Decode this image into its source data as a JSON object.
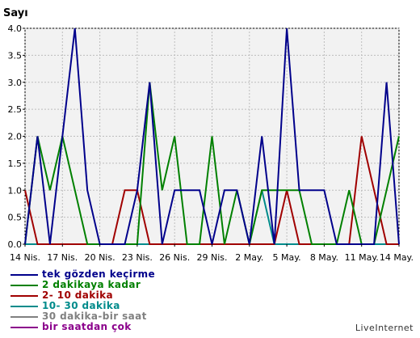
{
  "chart_data": {
    "type": "line",
    "ylabel": "Sayı",
    "ylim": [
      0,
      4
    ],
    "yticks": [
      "0.0",
      "0.5",
      "1.0",
      "1.5",
      "2.0",
      "2.5",
      "3.0",
      "3.5",
      "4.0"
    ],
    "x": [
      "14 Nis.",
      "15 Nis.",
      "16 Nis.",
      "17 Nis.",
      "18 Nis.",
      "19 Nis.",
      "20 Nis.",
      "21 Nis.",
      "22 Nis.",
      "23 Nis.",
      "24 Nis.",
      "25 Nis.",
      "26 Nis.",
      "27 Nis.",
      "28 Nis.",
      "29 Nis.",
      "30 Nis.",
      "1 May.",
      "2 May.",
      "3 May.",
      "4 May.",
      "5 May.",
      "6 May.",
      "7 May.",
      "8 May.",
      "9 May.",
      "10 May.",
      "11 May.",
      "12 May.",
      "13 May.",
      "14 May."
    ],
    "xtick_labels": [
      "14 Nis.",
      "17 Nis.",
      "20 Nis.",
      "23 Nis.",
      "26 Nis.",
      "29 Nis.",
      "2 May.",
      "5 May.",
      "8 May.",
      "11 May.",
      "14 May."
    ],
    "grid": true,
    "series": [
      {
        "name": "tek gözden keçirme",
        "color": "#00008b",
        "values": [
          0,
          2,
          0,
          2,
          4,
          1,
          0,
          0,
          0,
          1,
          3,
          0,
          1,
          1,
          1,
          0,
          1,
          1,
          0,
          2,
          0,
          4,
          1,
          1,
          1,
          0,
          0,
          0,
          0,
          3,
          0
        ]
      },
      {
        "name": "2 dakikaya kadar",
        "color": "#008000",
        "values": [
          0,
          2,
          1,
          2,
          1,
          0,
          0,
          0,
          0,
          0,
          3,
          1,
          2,
          0,
          0,
          2,
          0,
          1,
          0,
          1,
          1,
          1,
          1,
          0,
          0,
          0,
          1,
          0,
          0,
          1,
          2
        ]
      },
      {
        "name": "2- 10 dakika",
        "color": "#a00000",
        "values": [
          1,
          0,
          0,
          0,
          0,
          0,
          0,
          0,
          1,
          1,
          0,
          0,
          0,
          0,
          0,
          0,
          0,
          0,
          0,
          0,
          0,
          1,
          0,
          0,
          0,
          0,
          0,
          2,
          1,
          0,
          0
        ]
      },
      {
        "name": "10- 30 dakika",
        "color": "#008b8b",
        "values": [
          0,
          0,
          0,
          0,
          0,
          0,
          0,
          0,
          0,
          0,
          0,
          0,
          0,
          0,
          0,
          0,
          0,
          0,
          0,
          1,
          0,
          0,
          0,
          0,
          0,
          0,
          0,
          0,
          0,
          0,
          0
        ]
      },
      {
        "name": "30 dakika-bir saat",
        "color": "#808080",
        "values": [
          0,
          0,
          0,
          0,
          0,
          0,
          0,
          0,
          0,
          0,
          0,
          0,
          0,
          0,
          0,
          0,
          0,
          0,
          0,
          0,
          0,
          0,
          0,
          0,
          0,
          0,
          0,
          0,
          0,
          0,
          0
        ]
      },
      {
        "name": "bir saatdan çok",
        "color": "#8b008b",
        "values": [
          0,
          0,
          0,
          0,
          0,
          0,
          0,
          0,
          0,
          0,
          0,
          0,
          0,
          0,
          0,
          0,
          0,
          0,
          0,
          0,
          0,
          0,
          0,
          0,
          0,
          0,
          0,
          0,
          0,
          0,
          0
        ]
      }
    ]
  },
  "brand": "LiveInternet"
}
